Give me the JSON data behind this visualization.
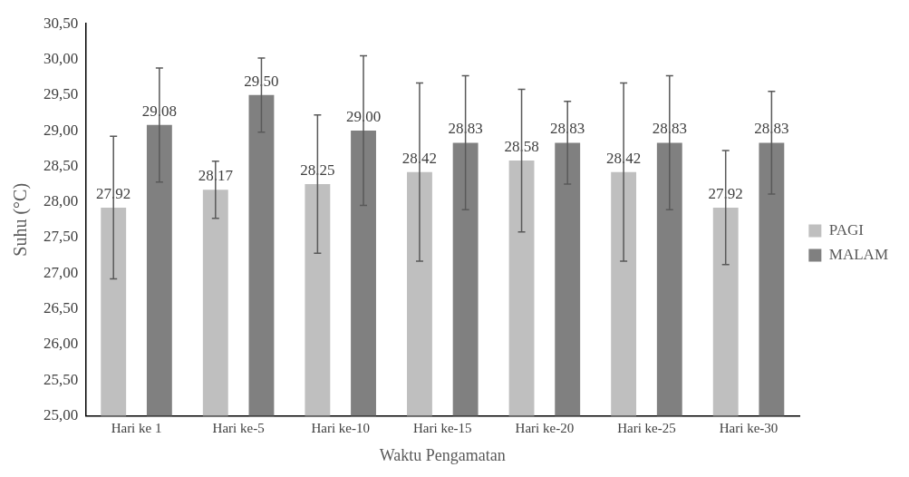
{
  "chart_data": {
    "type": "bar",
    "xlabel": "Waktu Pengamatan",
    "ylabel": "Suhu (°C)",
    "categories": [
      "Hari ke 1",
      "Hari ke-5",
      "Hari ke-10",
      "Hari ke-15",
      "Hari ke-20",
      "Hari ke-25",
      "Hari ke-30"
    ],
    "series": [
      {
        "name": "PAGI",
        "color": "#bfbfbf",
        "values": [
          27.92,
          28.17,
          28.25,
          28.42,
          28.58,
          28.42,
          27.92
        ],
        "errors": [
          1.0,
          0.4,
          0.97,
          1.25,
          1.0,
          1.25,
          0.8
        ],
        "value_labels": [
          "27.92",
          "28.17",
          "28.25",
          "28.42",
          "28.58",
          "28.42",
          "27.92"
        ]
      },
      {
        "name": "MALAM",
        "color": "#808080",
        "values": [
          29.08,
          29.5,
          29.0,
          28.83,
          28.83,
          28.83,
          28.83
        ],
        "errors": [
          0.8,
          0.52,
          1.05,
          0.94,
          0.58,
          0.94,
          0.72
        ],
        "value_labels": [
          "29.08",
          "29.50",
          "29.00",
          "28.83",
          "28.83",
          "28.83",
          "28.83"
        ]
      }
    ],
    "ylim": [
      25,
      30.5
    ],
    "yticks": [
      {
        "value": 25,
        "label": "25,00"
      },
      {
        "value": 25.5,
        "label": "25,50"
      },
      {
        "value": 26,
        "label": "26,00"
      },
      {
        "value": 26.5,
        "label": "26,50"
      },
      {
        "value": 27,
        "label": "27,00"
      },
      {
        "value": 27.5,
        "label": "27,50"
      },
      {
        "value": 28,
        "label": "28,00"
      },
      {
        "value": 28.5,
        "label": "28,50"
      },
      {
        "value": 29,
        "label": "29,00"
      },
      {
        "value": 29.5,
        "label": "29,50"
      },
      {
        "value": 30,
        "label": "30,00"
      },
      {
        "value": 30.5,
        "label": "30,50"
      }
    ],
    "grid": false,
    "legend": "right"
  }
}
